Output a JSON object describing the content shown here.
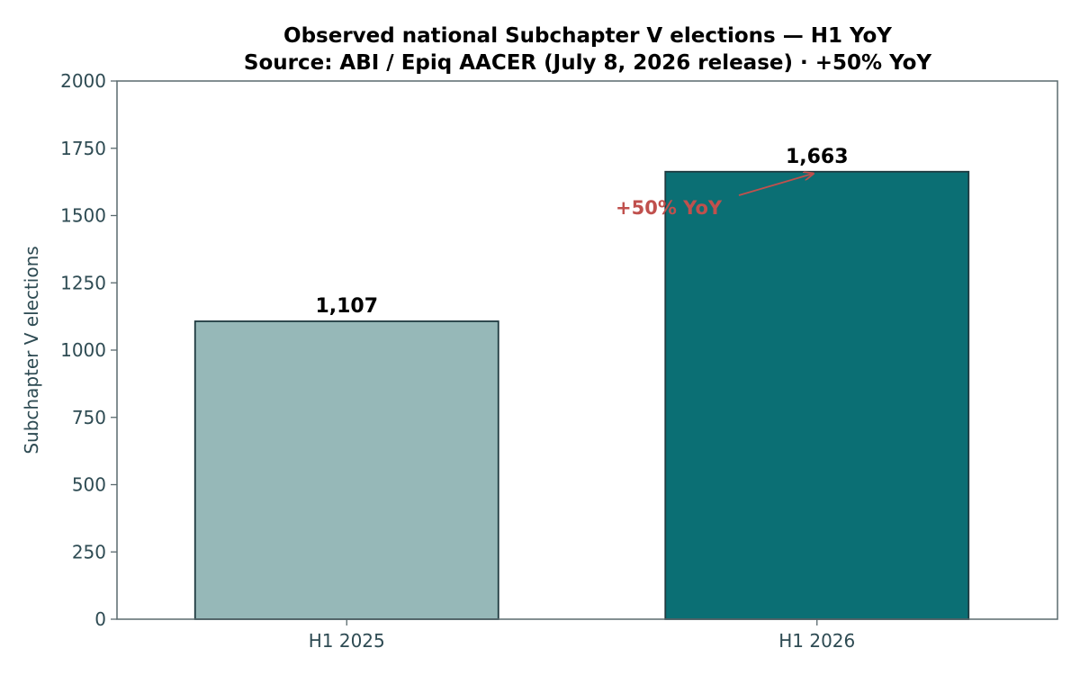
{
  "chart_data": {
    "type": "bar",
    "title": "Observed national Subchapter V elections — H1 YoY",
    "subtitle": "Source: ABI / Epiq AACER (July 8, 2026 release) · +50% YoY",
    "xlabel": "",
    "ylabel": "Subchapter V elections",
    "categories": [
      "H1 2025",
      "H1 2026"
    ],
    "values": [
      1107,
      1663
    ],
    "value_labels": [
      "1,107",
      "1,663"
    ],
    "bar_colors": [
      "#96b8b8",
      "#0b6f74"
    ],
    "bar_edge_color": "#1f3a40",
    "ylim": [
      0,
      2000
    ],
    "yticks": [
      0,
      250,
      500,
      750,
      1000,
      1250,
      1500,
      1750,
      2000
    ],
    "grid": false,
    "annotation": {
      "text": "+50% YoY",
      "color": "#c0504d",
      "points_to": {
        "category": "H1 2026",
        "value": 1663
      }
    }
  }
}
